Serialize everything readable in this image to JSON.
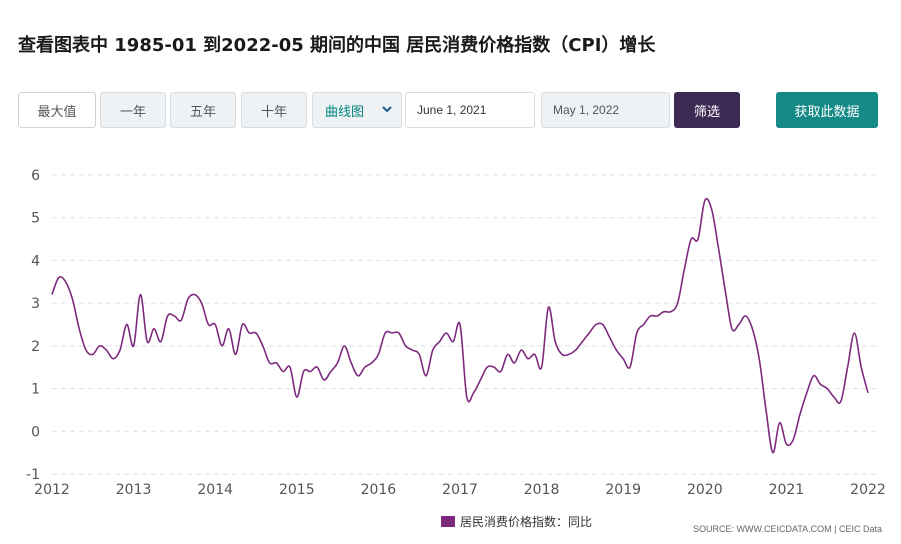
{
  "title": "查看图表中 1985-01 到2022-05 期间的中国 居民消费价格指数（CPI）增长",
  "controls": {
    "range_buttons": [
      "最大值",
      "一年",
      "五年",
      "十年"
    ],
    "chart_type": "曲线图",
    "start_date": "June 1, 2021",
    "end_date": "May 1, 2022",
    "filter_label": "筛选",
    "get_data_label": "获取此数据"
  },
  "legend_label": "居民消费价格指数：同比",
  "source": "SOURCE: WWW.CEICDATA.COM | CEIC Data",
  "colors": {
    "line": "#7d2a7e",
    "filter_bg": "#3d2b56",
    "get_data_bg": "#158a86",
    "grid": "#dde3e8"
  },
  "chart_data": {
    "type": "line",
    "title": "",
    "xlabel": "",
    "ylabel": "",
    "x_range": [
      "2012-01",
      "2022-01"
    ],
    "ylim": [
      -1,
      6
    ],
    "y_ticks": [
      6,
      5,
      4,
      3,
      2,
      1,
      0,
      -1
    ],
    "x_ticks": [
      "2012",
      "2013",
      "2014",
      "2015",
      "2016",
      "2017",
      "2018",
      "2019",
      "2020",
      "2021",
      "2022"
    ],
    "grid": "horizontal dashed",
    "legend": "bottom",
    "series": [
      {
        "name": "居民消费价格指数：同比",
        "x": [
          "2012-01",
          "2012-02",
          "2012-03",
          "2012-04",
          "2012-05",
          "2012-06",
          "2012-07",
          "2012-08",
          "2012-09",
          "2012-10",
          "2012-11",
          "2012-12",
          "2013-01",
          "2013-02",
          "2013-03",
          "2013-04",
          "2013-05",
          "2013-06",
          "2013-07",
          "2013-08",
          "2013-09",
          "2013-10",
          "2013-11",
          "2013-12",
          "2014-01",
          "2014-02",
          "2014-03",
          "2014-04",
          "2014-05",
          "2014-06",
          "2014-07",
          "2014-08",
          "2014-09",
          "2014-10",
          "2014-11",
          "2014-12",
          "2015-01",
          "2015-02",
          "2015-03",
          "2015-04",
          "2015-05",
          "2015-06",
          "2015-07",
          "2015-08",
          "2015-09",
          "2015-10",
          "2015-11",
          "2015-12",
          "2016-01",
          "2016-02",
          "2016-03",
          "2016-04",
          "2016-05",
          "2016-06",
          "2016-07",
          "2016-08",
          "2016-09",
          "2016-10",
          "2016-11",
          "2016-12",
          "2017-01",
          "2017-02",
          "2017-03",
          "2017-04",
          "2017-05",
          "2017-06",
          "2017-07",
          "2017-08",
          "2017-09",
          "2017-10",
          "2017-11",
          "2017-12",
          "2018-01",
          "2018-02",
          "2018-03",
          "2018-04",
          "2018-05",
          "2018-06",
          "2018-07",
          "2018-08",
          "2018-09",
          "2018-10",
          "2018-11",
          "2018-12",
          "2019-01",
          "2019-02",
          "2019-03",
          "2019-04",
          "2019-05",
          "2019-06",
          "2019-07",
          "2019-08",
          "2019-09",
          "2019-10",
          "2019-11",
          "2019-12",
          "2020-01",
          "2020-02",
          "2020-03",
          "2020-04",
          "2020-05",
          "2020-06",
          "2020-07",
          "2020-08",
          "2020-09",
          "2020-10",
          "2020-11",
          "2020-12",
          "2021-01",
          "2021-02",
          "2021-03",
          "2021-04",
          "2021-05",
          "2021-06",
          "2021-07",
          "2021-08",
          "2021-09",
          "2021-10",
          "2021-11",
          "2021-12",
          "2022-01"
        ],
        "y": [
          3.2,
          3.6,
          3.5,
          3.1,
          2.4,
          1.9,
          1.8,
          2.0,
          1.9,
          1.7,
          1.9,
          2.5,
          2.0,
          3.2,
          2.1,
          2.4,
          2.1,
          2.7,
          2.7,
          2.6,
          3.1,
          3.2,
          3.0,
          2.5,
          2.5,
          2.0,
          2.4,
          1.8,
          2.5,
          2.3,
          2.3,
          2.0,
          1.6,
          1.6,
          1.4,
          1.5,
          0.8,
          1.4,
          1.4,
          1.5,
          1.2,
          1.4,
          1.6,
          2.0,
          1.6,
          1.3,
          1.5,
          1.6,
          1.8,
          2.3,
          2.3,
          2.3,
          2.0,
          1.9,
          1.8,
          1.3,
          1.9,
          2.1,
          2.3,
          2.1,
          2.5,
          0.8,
          0.9,
          1.2,
          1.5,
          1.5,
          1.4,
          1.8,
          1.6,
          1.9,
          1.7,
          1.8,
          1.5,
          2.9,
          2.1,
          1.8,
          1.8,
          1.9,
          2.1,
          2.3,
          2.5,
          2.5,
          2.2,
          1.9,
          1.7,
          1.5,
          2.3,
          2.5,
          2.7,
          2.7,
          2.8,
          2.8,
          3.0,
          3.8,
          4.5,
          4.5,
          5.4,
          5.2,
          4.3,
          3.3,
          2.4,
          2.5,
          2.7,
          2.4,
          1.7,
          0.5,
          -0.5,
          0.2,
          -0.3,
          -0.2,
          0.4,
          0.9,
          1.3,
          1.1,
          1.0,
          0.8,
          0.7,
          1.5,
          2.3,
          1.5,
          0.9
        ]
      }
    ]
  }
}
